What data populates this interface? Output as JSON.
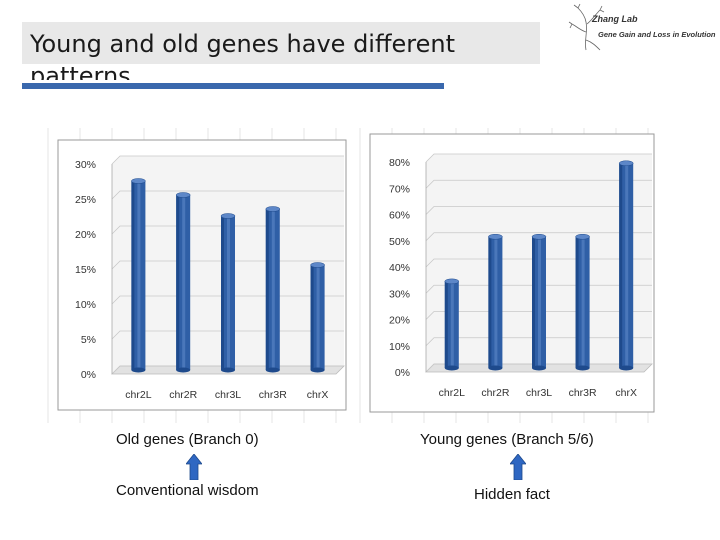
{
  "slide": {
    "title": "Young and old genes have different patterns",
    "logo_title": "Zhang Lab",
    "logo_subtitle": "Gene Gain and Loss in Evolution"
  },
  "captions": {
    "left_label": "Old genes (Branch 0)",
    "right_label": "Young genes (Branch 5/6)",
    "left_note": "Conventional wisdom",
    "right_note": "Hidden fact"
  },
  "colors": {
    "bar": "#2f5fa6",
    "bar_dark": "#1e4a8c",
    "bar_light": "#5d87c8",
    "accent": "#3a68ad"
  },
  "chart_data": [
    {
      "type": "bar",
      "title": "Old genes (Branch 0)",
      "categories": [
        "chr2L",
        "chr2R",
        "chr3L",
        "chr3R",
        "chrX"
      ],
      "values": [
        27,
        25,
        22,
        23,
        15
      ],
      "yticks": [
        "0%",
        "5%",
        "10%",
        "15%",
        "20%",
        "25%",
        "30%"
      ],
      "ylim": [
        0,
        30
      ],
      "xlabel": "",
      "ylabel": ""
    },
    {
      "type": "bar",
      "title": "Young genes (Branch 5/6)",
      "categories": [
        "chr2L",
        "chr2R",
        "chr3L",
        "chr3R",
        "chrX"
      ],
      "values": [
        33,
        50,
        50,
        50,
        78
      ],
      "yticks": [
        "0%",
        "10%",
        "20%",
        "30%",
        "40%",
        "50%",
        "60%",
        "70%",
        "80%"
      ],
      "ylim": [
        0,
        80
      ],
      "xlabel": "",
      "ylabel": ""
    }
  ]
}
